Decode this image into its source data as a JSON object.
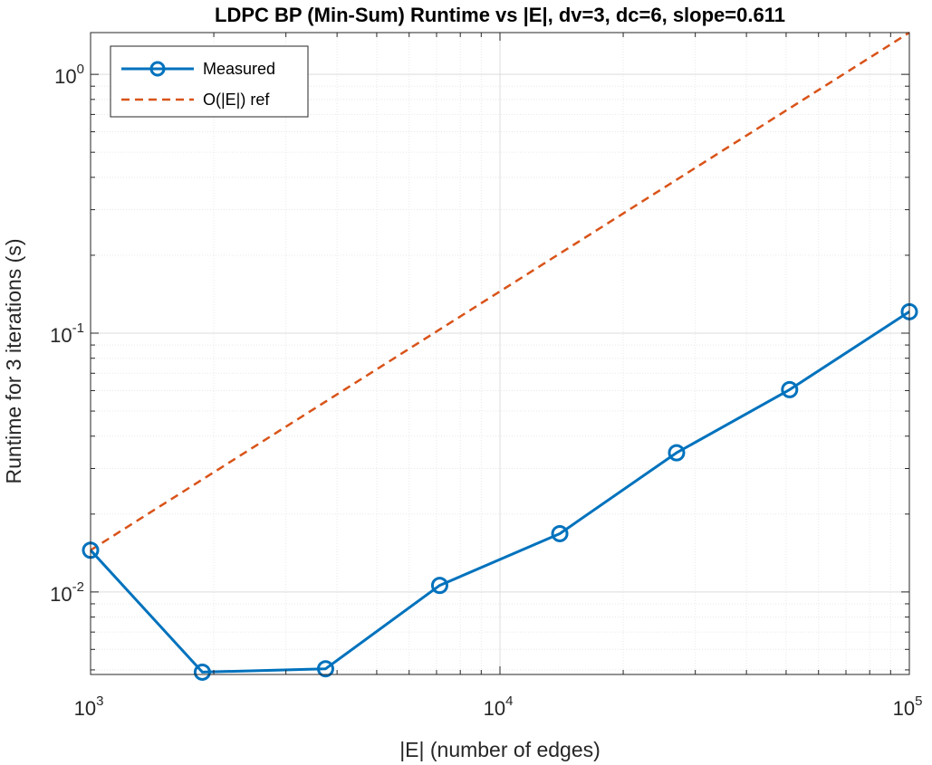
{
  "chart_data": {
    "type": "line",
    "title": "LDPC BP (Min-Sum) Runtime vs |E|, dv=3, dc=6, slope=0.611",
    "xlabel": "|E| (number of edges)",
    "ylabel": "Runtime for 3 iterations (s)",
    "xscale": "log",
    "yscale": "log",
    "xlim": [
      1000,
      100000
    ],
    "ylim": [
      0.0048,
      1.45
    ],
    "x_ticks": [
      {
        "base": "10",
        "exp": "3",
        "value": 1000
      },
      {
        "base": "10",
        "exp": "4",
        "value": 10000
      },
      {
        "base": "10",
        "exp": "5",
        "value": 100000
      }
    ],
    "y_ticks": [
      {
        "base": "10",
        "exp": "-2",
        "value": 0.01
      },
      {
        "base": "10",
        "exp": "-1",
        "value": 0.1
      },
      {
        "base": "10",
        "exp": "0",
        "value": 1
      }
    ],
    "grid": true,
    "legend_position": "top-left",
    "series": [
      {
        "name": "Measured",
        "style": "solid",
        "marker": "circle",
        "color": "#0072BD",
        "x": [
          1000,
          1875,
          3750,
          7125,
          14000,
          27000,
          51000,
          100000
        ],
        "y": [
          0.0145,
          0.0049,
          0.00505,
          0.0106,
          0.0168,
          0.0345,
          0.0605,
          0.121
        ]
      },
      {
        "name": "O(|E|) ref",
        "style": "dashed",
        "marker": "none",
        "color": "#D95319",
        "x": [
          1000,
          100000
        ],
        "y": [
          0.0145,
          1.45
        ]
      }
    ]
  }
}
